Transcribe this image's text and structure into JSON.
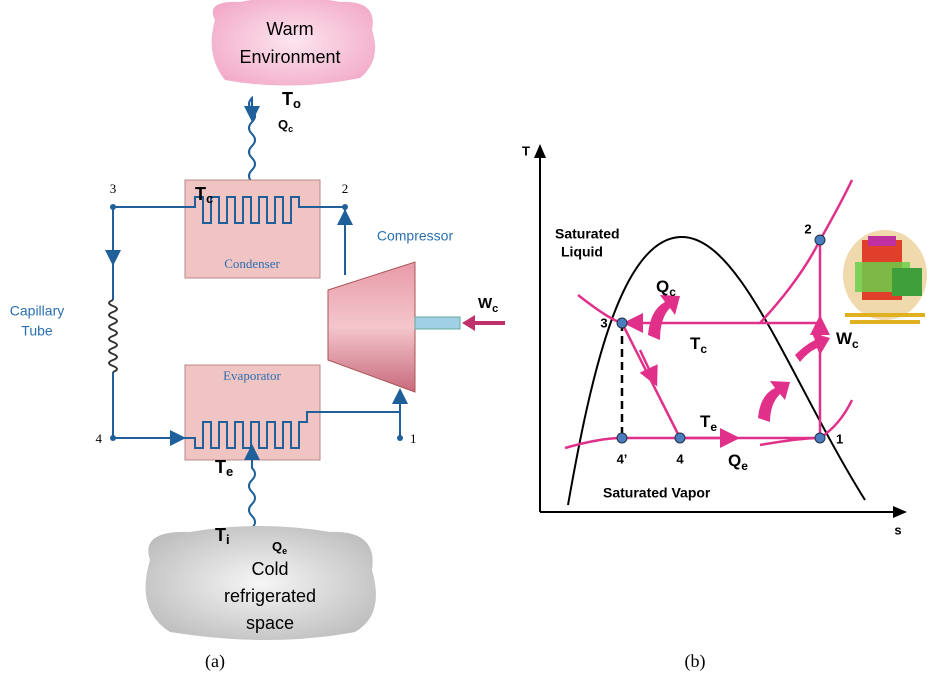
{
  "panel_a": {
    "warm": [
      "Warm",
      "Environment"
    ],
    "t_o": {
      "main": "T",
      "sub": "o"
    },
    "q_c": {
      "main": "Q",
      "sub": "c"
    },
    "t_c": {
      "main": "T",
      "sub": "c"
    },
    "nodes": [
      "1",
      "2",
      "3",
      "4"
    ],
    "condenser": "Condenser",
    "evaporator": "Evaporator",
    "compressor": "Compressor",
    "capillary": [
      "Capillary",
      "Tube"
    ],
    "w_c": {
      "main": "W",
      "sub": "c"
    },
    "t_e": {
      "main": "T",
      "sub": "e"
    },
    "t_i": {
      "main": "T",
      "sub": "i"
    },
    "q_e": {
      "main": "Q",
      "sub": "e"
    },
    "cold": [
      "Cold",
      "refrigerated",
      "space"
    ],
    "caption": "(a)"
  },
  "panel_b": {
    "y_axis": "T",
    "x_axis": "s",
    "sat_liquid": [
      "Saturated",
      "Liquid"
    ],
    "sat_vapor": "Saturated Vapor",
    "points": [
      "1",
      "2",
      "3",
      "4",
      "4’"
    ],
    "q_c": {
      "main": "Q",
      "sub": "c"
    },
    "t_c": {
      "main": "T",
      "sub": "c"
    },
    "t_e": {
      "main": "T",
      "sub": "e"
    },
    "q_e": {
      "main": "Q",
      "sub": "e"
    },
    "w_c": {
      "main": "W",
      "sub": "c"
    },
    "caption": "(b)"
  }
}
